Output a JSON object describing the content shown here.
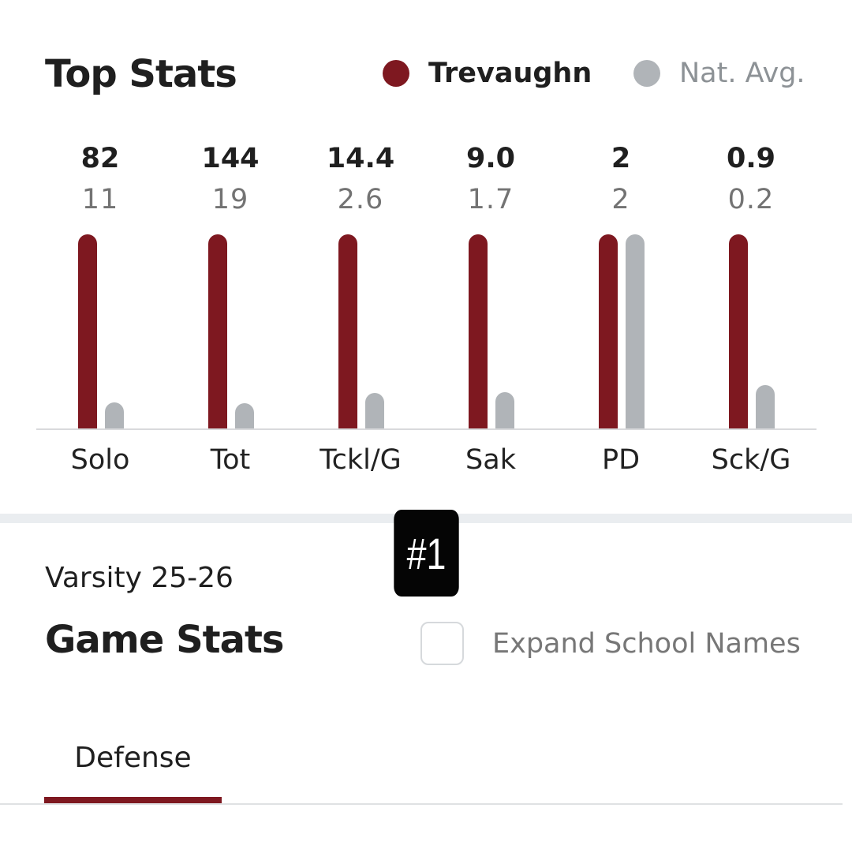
{
  "top_stats": {
    "title": "Top Stats",
    "legend": {
      "player": "Trevaughn",
      "average": "Nat. Avg."
    },
    "stats": [
      {
        "label": "Solo",
        "player": "82",
        "avg": "11"
      },
      {
        "label": "Tot",
        "player": "144",
        "avg": "19"
      },
      {
        "label": "Tckl/G",
        "player": "14.4",
        "avg": "2.6"
      },
      {
        "label": "Sak",
        "player": "9.0",
        "avg": "1.7"
      },
      {
        "label": "PD",
        "player": "2",
        "avg": "2"
      },
      {
        "label": "Sck/G",
        "player": "0.9",
        "avg": "0.2"
      }
    ]
  },
  "chart_data": {
    "type": "bar",
    "categories": [
      "Solo",
      "Tot",
      "Tckl/G",
      "Sak",
      "PD",
      "Sck/G"
    ],
    "series": [
      {
        "name": "Trevaughn",
        "values": [
          82,
          144,
          14.4,
          9.0,
          2,
          0.9
        ],
        "relative_height": [
          1,
          1,
          1,
          1,
          1,
          1
        ]
      },
      {
        "name": "Nat. Avg.",
        "values": [
          11,
          19,
          2.6,
          1.7,
          2,
          0.2
        ],
        "relative_height": [
          0.134,
          0.132,
          0.181,
          0.189,
          1,
          0.222
        ]
      }
    ],
    "colors": {
      "player": "#7e1820",
      "average": "#b0b4b8"
    }
  },
  "rank_badge": "#1",
  "game_stats": {
    "season": "Varsity 25-26",
    "title": "Game Stats",
    "expand_label": "Expand School Names",
    "expand_checked": false,
    "tabs": [
      {
        "label": "Defense",
        "active": true
      }
    ]
  },
  "colors": {
    "accent": "#7e1820",
    "average": "#b0b4b8"
  }
}
